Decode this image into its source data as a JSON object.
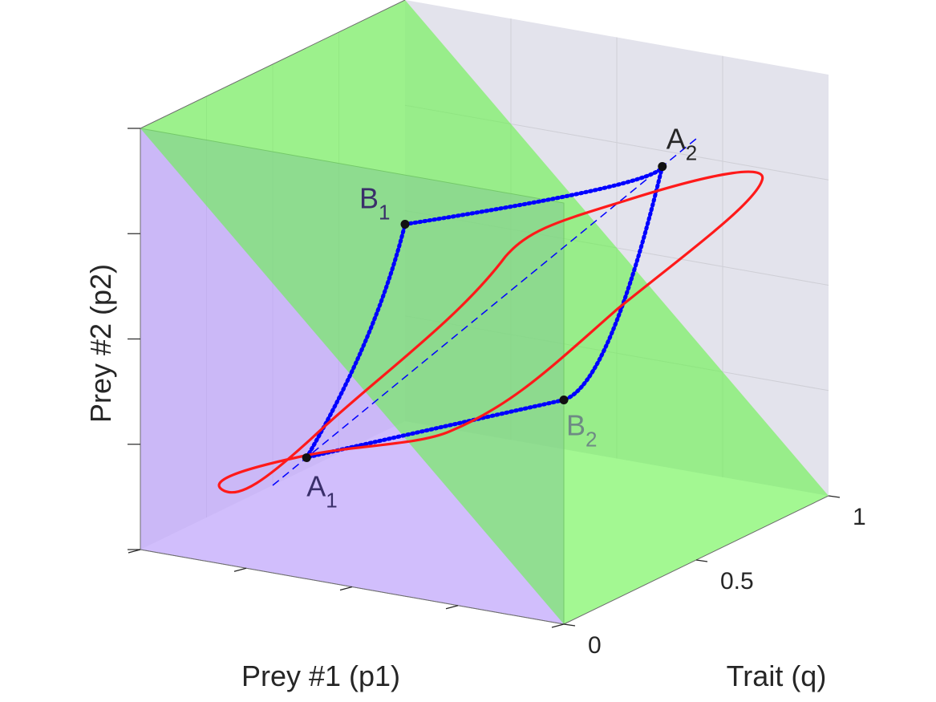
{
  "chart_data": {
    "type": "line3d",
    "axes": {
      "x": {
        "label": "Prey #1 (p1)",
        "lim": [
          0,
          1
        ],
        "tick_labels": []
      },
      "y": {
        "label": "Trait (q)",
        "lim": [
          0,
          1
        ],
        "ticks": [
          0,
          0.5,
          1
        ],
        "tick_labels": [
          "0",
          "0.5",
          "1"
        ]
      },
      "z": {
        "label": "Prey #2 (p2)",
        "lim": [
          0,
          1
        ],
        "tick_labels": []
      }
    },
    "grid": true,
    "planes": [
      {
        "name": "",
        "equation": "q = 0",
        "color": "#b99bfb",
        "opacity": 0.65
      },
      {
        "name": "",
        "equation": "p1 + p2 = 1",
        "color": "#66f44a",
        "opacity": 0.6
      }
    ],
    "points": [
      {
        "label": "A",
        "subscript": "1",
        "p1": 0.08,
        "q": 0.5,
        "p2": 0.08
      },
      {
        "label": "A",
        "subscript": "2",
        "p1": 0.92,
        "q": 0.5,
        "p2": 0.92
      },
      {
        "label": "B",
        "subscript": "1",
        "p1": 0.5,
        "q": 0.2,
        "p2": 0.8
      },
      {
        "label": "B",
        "subscript": "2",
        "p1": 0.5,
        "q": 0.8,
        "p2": 0.2
      }
    ],
    "series": [
      {
        "kind": "limit-cycle",
        "color": "#ff0000",
        "style": "solid"
      },
      {
        "kind": "heteroclinic-orbit",
        "color": "#0000ff",
        "style": "dotted"
      },
      {
        "kind": "diagonal",
        "color": "#0000ff",
        "style": "dashed"
      }
    ]
  }
}
